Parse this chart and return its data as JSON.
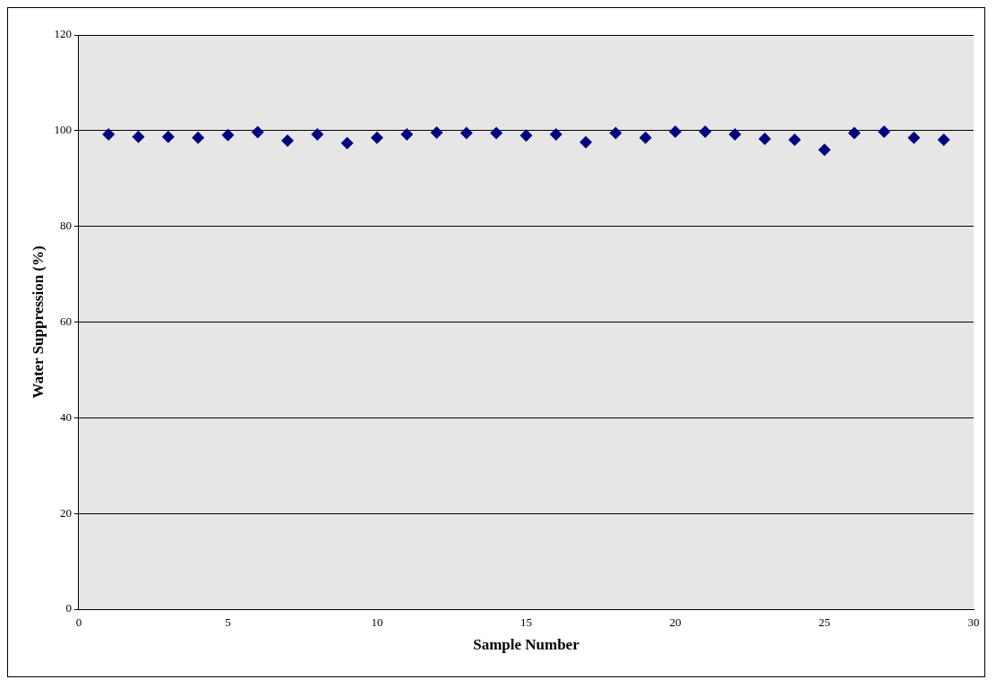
{
  "chart_data": {
    "type": "scatter",
    "xlabel": "Sample Number",
    "ylabel": "Water Suppression (%)",
    "x": [
      1,
      2,
      3,
      4,
      5,
      6,
      7,
      8,
      9,
      10,
      11,
      12,
      13,
      14,
      15,
      16,
      17,
      18,
      19,
      20,
      21,
      22,
      23,
      24,
      25,
      26,
      27,
      28,
      29
    ],
    "series": [
      {
        "color": "#000080",
        "values": [
          99.2,
          98.7,
          98.7,
          98.5,
          99.1,
          99.7,
          97.9,
          99.2,
          97.4,
          98.5,
          99.2,
          99.6,
          99.5,
          99.5,
          99.0,
          99.2,
          97.6,
          99.5,
          98.5,
          99.8,
          99.8,
          99.2,
          98.3,
          98.1,
          96.0,
          99.5,
          99.8,
          98.5,
          98.1
        ]
      }
    ],
    "xlim": [
      0,
      30
    ],
    "xticks": [
      0,
      5,
      10,
      15,
      20,
      25,
      30
    ],
    "ylim": [
      0,
      120
    ],
    "yticks": [
      0,
      20,
      40,
      60,
      80,
      100,
      120
    ],
    "grid": "y",
    "legend": false,
    "marker": "diamond"
  }
}
